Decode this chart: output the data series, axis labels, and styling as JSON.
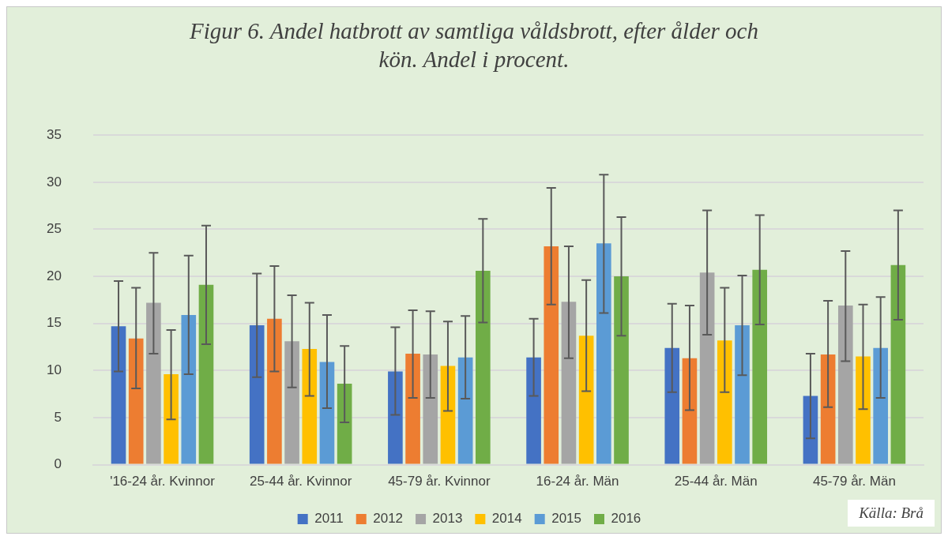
{
  "chart_data": {
    "type": "bar",
    "title": "Figur 6. Andel hatbrott av samtliga våldsbrott, efter ålder och kön. Andel i procent.",
    "categories": [
      "'16-24 år. Kvinnor",
      "25-44 år. Kvinnor",
      "45-79 år. Kvinnor",
      "16-24 år. Män",
      "25-44 år. Män",
      "45-79 år. Män"
    ],
    "series": [
      {
        "name": "2011",
        "color": "#4472c4",
        "values": [
          14.7,
          14.8,
          9.9,
          11.4,
          12.4,
          7.3
        ],
        "errors": [
          [
            9.9,
            19.5
          ],
          [
            9.3,
            20.3
          ],
          [
            5.3,
            14.6
          ],
          [
            7.3,
            15.5
          ],
          [
            7.7,
            17.1
          ],
          [
            2.8,
            11.8
          ]
        ]
      },
      {
        "name": "2012",
        "color": "#ed7d31",
        "values": [
          13.4,
          15.5,
          11.8,
          23.2,
          11.3,
          11.7
        ],
        "errors": [
          [
            8.1,
            18.8
          ],
          [
            9.9,
            21.1
          ],
          [
            7.1,
            16.4
          ],
          [
            17.0,
            29.4
          ],
          [
            5.8,
            16.9
          ],
          [
            6.1,
            17.4
          ]
        ]
      },
      {
        "name": "2013",
        "color": "#a5a5a5",
        "values": [
          17.2,
          13.1,
          11.7,
          17.3,
          20.4,
          16.9
        ],
        "errors": [
          [
            11.8,
            22.5
          ],
          [
            8.2,
            18.0
          ],
          [
            7.1,
            16.3
          ],
          [
            11.3,
            23.2
          ],
          [
            13.8,
            27.0
          ],
          [
            11.0,
            22.7
          ]
        ]
      },
      {
        "name": "2014",
        "color": "#ffc000",
        "values": [
          9.6,
          12.3,
          10.5,
          13.7,
          13.2,
          11.5
        ],
        "errors": [
          [
            4.8,
            14.3
          ],
          [
            7.3,
            17.2
          ],
          [
            5.7,
            15.2
          ],
          [
            7.8,
            19.6
          ],
          [
            7.7,
            18.8
          ],
          [
            5.9,
            17.0
          ]
        ]
      },
      {
        "name": "2015",
        "color": "#5b9bd5",
        "values": [
          15.9,
          10.9,
          11.4,
          23.5,
          14.8,
          12.4
        ],
        "errors": [
          [
            9.6,
            22.2
          ],
          [
            6.0,
            15.9
          ],
          [
            7.0,
            15.8
          ],
          [
            16.1,
            30.8
          ],
          [
            9.5,
            20.1
          ],
          [
            7.1,
            17.8
          ]
        ]
      },
      {
        "name": "2016",
        "color": "#70ad47",
        "values": [
          19.1,
          8.6,
          20.6,
          20.0,
          20.7,
          21.2
        ],
        "errors": [
          [
            12.8,
            25.4
          ],
          [
            4.5,
            12.6
          ],
          [
            15.1,
            26.1
          ],
          [
            13.7,
            26.3
          ],
          [
            14.9,
            26.5
          ],
          [
            15.4,
            27.0
          ]
        ]
      }
    ],
    "ylim": [
      0,
      35
    ],
    "yticks": [
      0,
      5,
      10,
      15,
      20,
      25,
      30,
      35
    ],
    "grid": "y",
    "legend": "bottom",
    "annotations": [
      "Källa: Brå"
    ]
  }
}
